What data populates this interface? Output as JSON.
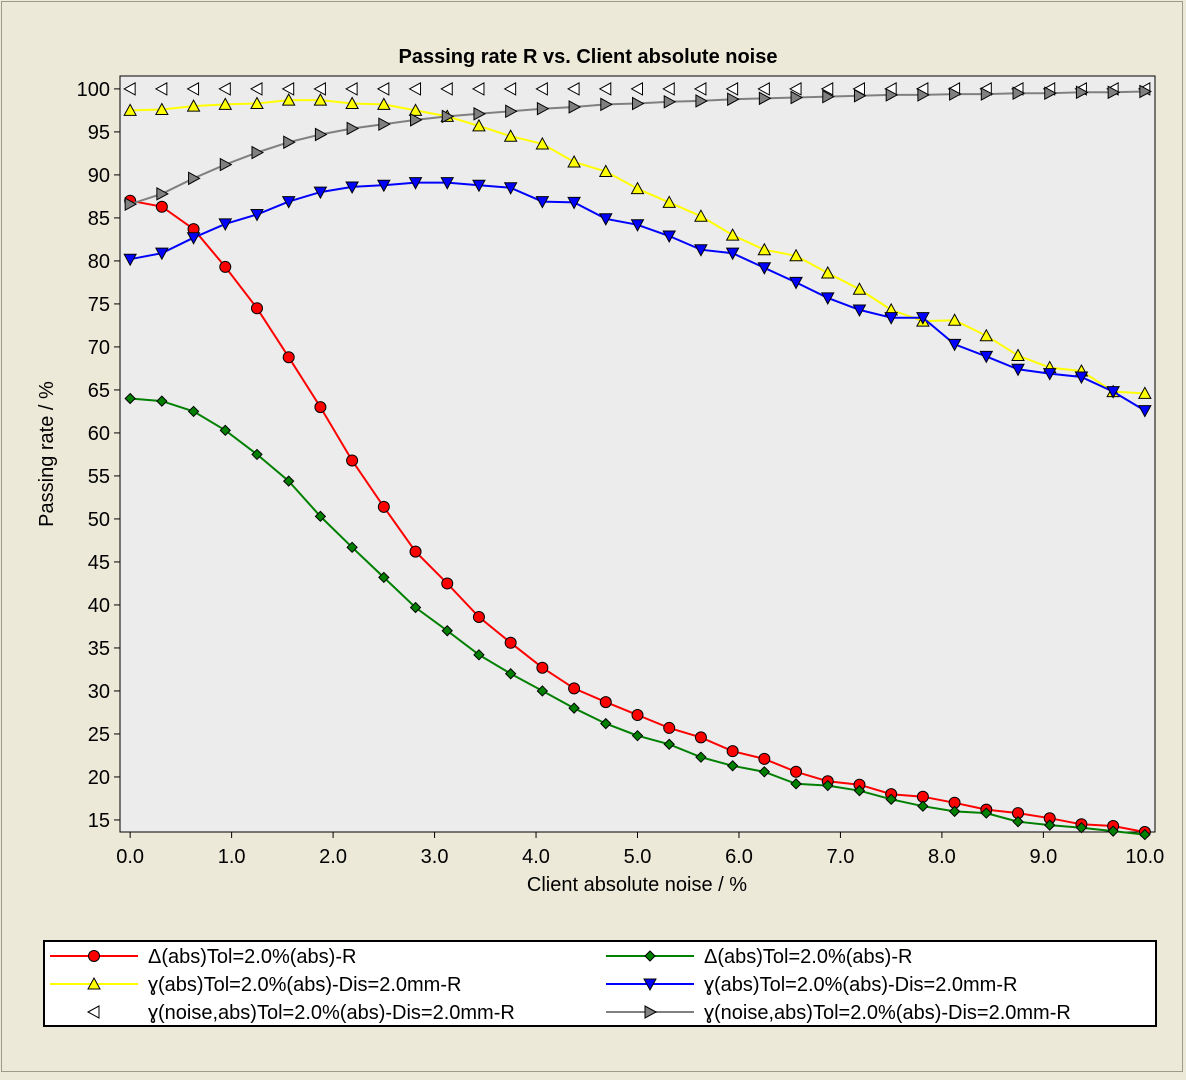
{
  "chart_data": {
    "type": "line",
    "title": "Passing rate R vs. Client absolute noise",
    "xlabel": "Client absolute noise / %",
    "ylabel": "Passing rate / %",
    "xlim": [
      -0.1,
      10.1
    ],
    "ylim": [
      13.6,
      101.5
    ],
    "xticks": [
      "0.0",
      "1.0",
      "2.0",
      "3.0",
      "4.0",
      "5.0",
      "6.0",
      "7.0",
      "8.0",
      "9.0",
      "10.0"
    ],
    "xtick_values": [
      0,
      1,
      2,
      3,
      4,
      5,
      6,
      7,
      8,
      9,
      10
    ],
    "yticks": [
      "15",
      "20",
      "25",
      "30",
      "35",
      "40",
      "45",
      "50",
      "55",
      "60",
      "65",
      "70",
      "75",
      "80",
      "85",
      "90",
      "95",
      "100"
    ],
    "ytick_values": [
      15,
      20,
      25,
      30,
      35,
      40,
      45,
      50,
      55,
      60,
      65,
      70,
      75,
      80,
      85,
      90,
      95,
      100
    ],
    "grid": false,
    "legend_position": "bottom",
    "x": [
      0.0,
      0.3125,
      0.625,
      0.9375,
      1.25,
      1.5625,
      1.875,
      2.1875,
      2.5,
      2.8125,
      3.125,
      3.4375,
      3.75,
      4.0625,
      4.375,
      4.6875,
      5.0,
      5.3125,
      5.625,
      5.9375,
      6.25,
      6.5625,
      6.875,
      7.1875,
      7.5,
      7.8125,
      8.125,
      8.4375,
      8.75,
      9.0625,
      9.375,
      9.6875,
      10.0
    ],
    "series": [
      {
        "name": "Δ(abs)Tol=2.0%(abs)-R",
        "color": "#ff0000",
        "marker": "circle",
        "marker_fill": "#ff0000",
        "values": [
          87.0,
          86.3,
          83.7,
          79.3,
          74.5,
          68.8,
          63.0,
          56.8,
          51.4,
          46.2,
          42.5,
          38.6,
          35.6,
          32.7,
          30.3,
          28.7,
          27.2,
          25.7,
          24.6,
          23.0,
          22.1,
          20.6,
          19.5,
          19.1,
          18.0,
          17.7,
          17.0,
          16.2,
          15.8,
          15.2,
          14.5,
          14.3,
          13.6
        ]
      },
      {
        "name": "Δ(abs)Tol=2.0%(abs)-R",
        "color": "#008000",
        "marker": "diamond",
        "marker_fill": "#008000",
        "values": [
          64.0,
          63.7,
          62.5,
          60.3,
          57.5,
          54.4,
          50.3,
          46.7,
          43.2,
          39.7,
          37.0,
          34.2,
          32.0,
          30.0,
          28.0,
          26.2,
          24.8,
          23.8,
          22.3,
          21.3,
          20.6,
          19.2,
          19.0,
          18.4,
          17.4,
          16.6,
          16.0,
          15.8,
          14.8,
          14.4,
          14.1,
          13.7,
          13.3
        ]
      },
      {
        "name": "ɣ(abs)Tol=2.0%(abs)-Dis=2.0mm-R",
        "color": "#ffff00",
        "marker": "triangle-up",
        "marker_fill": "#ffff00",
        "values": [
          97.5,
          97.6,
          98.0,
          98.2,
          98.3,
          98.7,
          98.7,
          98.3,
          98.2,
          97.5,
          96.8,
          95.7,
          94.5,
          93.6,
          91.5,
          90.4,
          88.4,
          86.8,
          85.2,
          83.0,
          81.3,
          80.6,
          78.6,
          76.7,
          74.3,
          73.0,
          73.1,
          71.3,
          69.0,
          67.6,
          67.2,
          64.8,
          64.6
        ]
      },
      {
        "name": "ɣ(abs)Tol=2.0%(abs)-Dis=2.0mm-R",
        "color": "#0000ff",
        "marker": "triangle-down",
        "marker_fill": "#0000ff",
        "values": [
          80.2,
          80.9,
          82.7,
          84.3,
          85.4,
          86.9,
          88.0,
          88.6,
          88.8,
          89.1,
          89.1,
          88.8,
          88.5,
          86.9,
          86.8,
          84.9,
          84.2,
          82.9,
          81.3,
          80.9,
          79.2,
          77.5,
          75.7,
          74.3,
          73.4,
          73.4,
          70.3,
          68.9,
          67.4,
          66.9,
          66.5,
          64.8,
          62.6
        ]
      },
      {
        "name": "ɣ(noise,abs)Tol=2.0%(abs)-Dis=2.0mm-R",
        "color": "#ffffff",
        "marker": "triangle-left",
        "marker_fill": "#ffffff",
        "line": false,
        "values": [
          100,
          100,
          100,
          100,
          100,
          100,
          100,
          100,
          100,
          100,
          100,
          100,
          100,
          100,
          100,
          100,
          100,
          100,
          100,
          100,
          100,
          100,
          100,
          100,
          100,
          100,
          100,
          100,
          100,
          100,
          100,
          100,
          100
        ]
      },
      {
        "name": "ɣ(noise,abs)Tol=2.0%(abs)-Dis=2.0mm-R",
        "color": "#808080",
        "marker": "triangle-right",
        "marker_fill": "#808080",
        "values": [
          86.6,
          87.8,
          89.6,
          91.2,
          92.6,
          93.8,
          94.7,
          95.4,
          95.9,
          96.4,
          96.8,
          97.1,
          97.4,
          97.7,
          97.9,
          98.2,
          98.3,
          98.5,
          98.6,
          98.8,
          98.9,
          99.0,
          99.1,
          99.2,
          99.3,
          99.3,
          99.4,
          99.4,
          99.5,
          99.5,
          99.6,
          99.6,
          99.7
        ]
      }
    ]
  }
}
